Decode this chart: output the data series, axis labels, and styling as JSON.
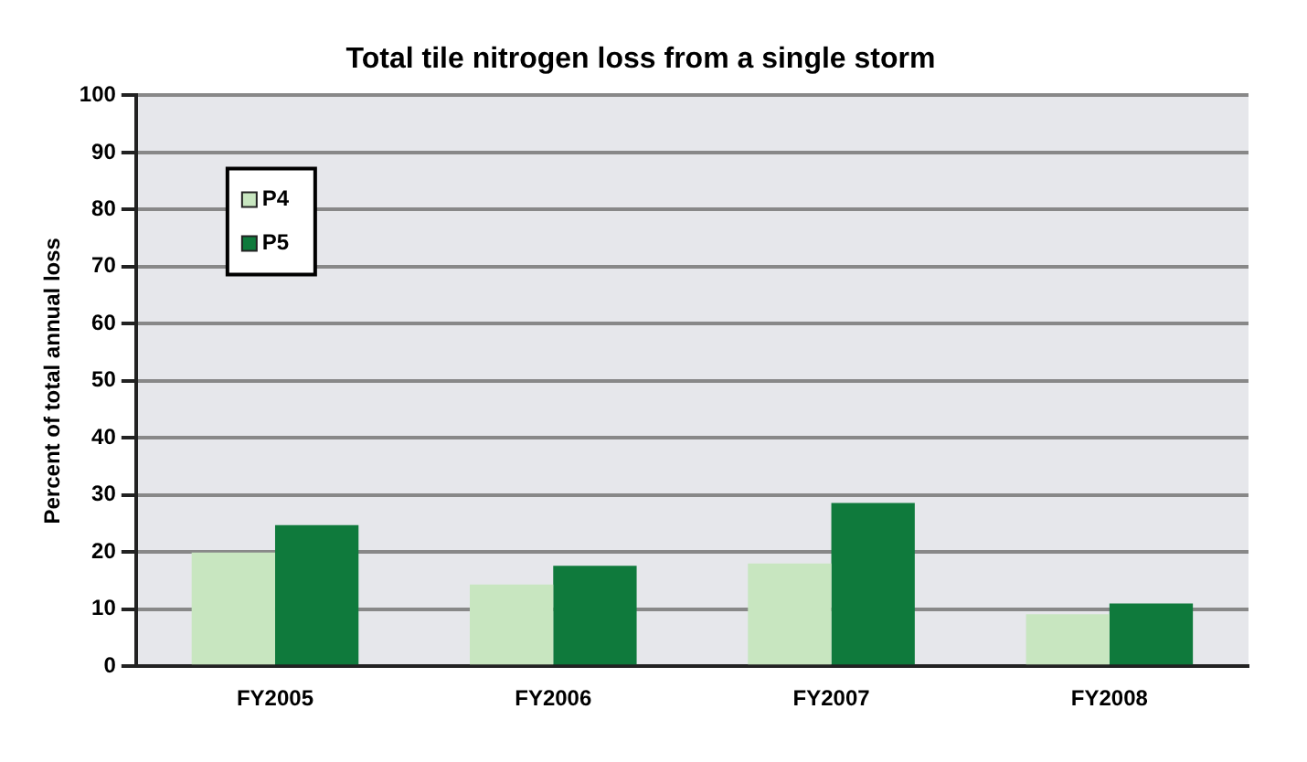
{
  "chart_data": {
    "type": "bar",
    "title": "Total tile nitrogen loss from a single storm",
    "ylabel": "Percent of total annual loss",
    "categories": [
      "FY2005",
      "FY2006",
      "FY2007",
      "FY2008"
    ],
    "series": [
      {
        "name": "P4",
        "color": "#c8e6c0",
        "values": [
          19.9,
          14.3,
          18,
          9.1
        ]
      },
      {
        "name": "P5",
        "color": "#0f7a3c",
        "values": [
          24.7,
          17.6,
          28.6,
          11
        ]
      }
    ],
    "ylim": [
      0,
      100
    ],
    "yticks": [
      0,
      10,
      20,
      30,
      40,
      50,
      60,
      70,
      80,
      90,
      100
    ],
    "grid": "y",
    "legend": "top left"
  }
}
